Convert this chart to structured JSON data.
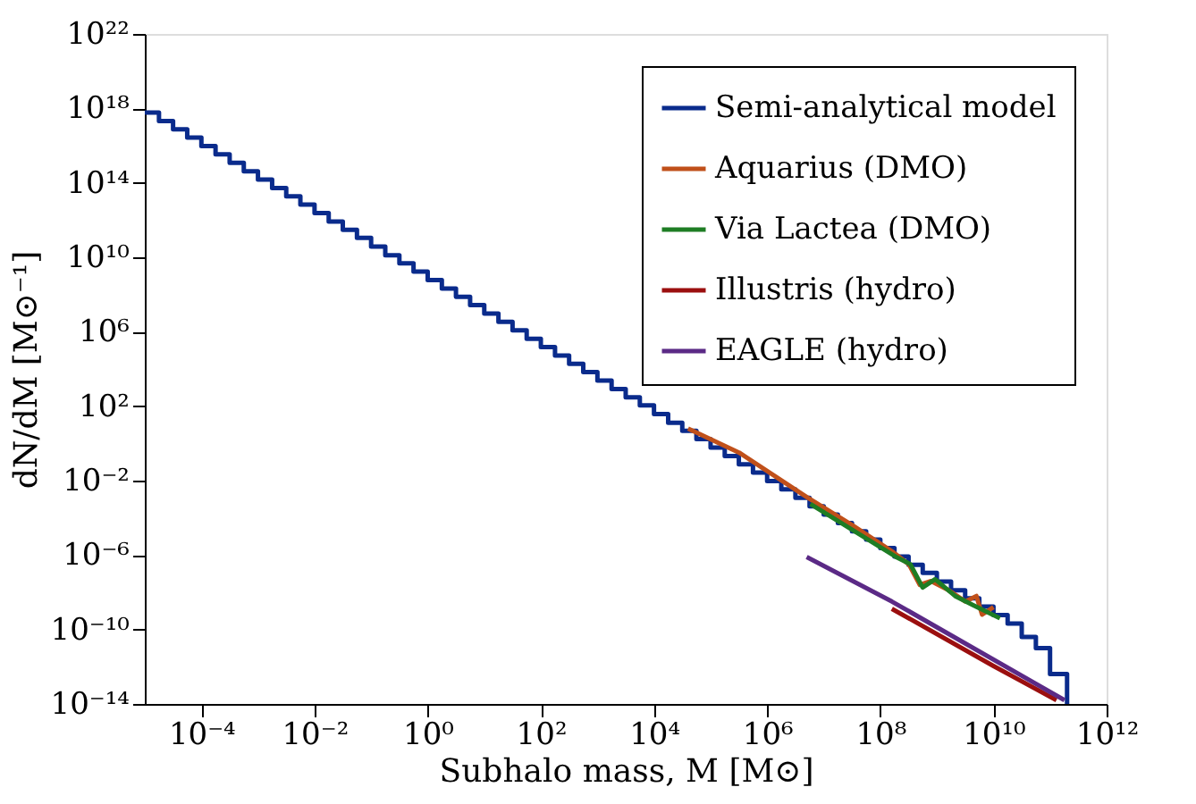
{
  "chart_data": {
    "type": "line",
    "xlabel": "Subhalo mass, M [M⊙]",
    "ylabel": "dN/dM [M⊙⁻¹]",
    "xlim": [
      1e-05,
      1000000000000.0
    ],
    "ylim": [
      1e-14,
      1e+22
    ],
    "log": "xy",
    "grid": false,
    "legend": "top right",
    "line_style": "solid",
    "marker": "none",
    "xticks": [
      {
        "value": 0.0001,
        "label": "10⁻⁴"
      },
      {
        "value": 0.01,
        "label": "10⁻²"
      },
      {
        "value": 1,
        "label": "10⁰"
      },
      {
        "value": 100.0,
        "label": "10²"
      },
      {
        "value": 10000.0,
        "label": "10⁴"
      },
      {
        "value": 1000000.0,
        "label": "10⁶"
      },
      {
        "value": 100000000.0,
        "label": "10⁸"
      },
      {
        "value": 10000000000.0,
        "label": "10¹⁰"
      },
      {
        "value": 1000000000000.0,
        "label": "10¹²"
      }
    ],
    "yticks": [
      {
        "value": 1e-14,
        "label": "10⁻¹⁴"
      },
      {
        "value": 1e-10,
        "label": "10⁻¹⁰"
      },
      {
        "value": 1e-06,
        "label": "10⁻⁶"
      },
      {
        "value": 0.01,
        "label": "10⁻²"
      },
      {
        "value": 100.0,
        "label": "10²"
      },
      {
        "value": 1000000.0,
        "label": "10⁶"
      },
      {
        "value": 10000000000.0,
        "label": "10¹⁰"
      },
      {
        "value": 100000000000000.0,
        "label": "10¹⁴"
      },
      {
        "value": 1e+18,
        "label": "10¹⁸"
      },
      {
        "value": 1e+22,
        "label": "10²²"
      }
    ],
    "series": [
      {
        "name": "Semi-analytical model",
        "type": "step",
        "color": "#0a2b8c",
        "x": [
          1e-05,
          1.78e-05,
          3.16e-05,
          5.62e-05,
          0.0001,
          0.000178,
          0.000316,
          0.000562,
          0.001,
          0.00178,
          0.00316,
          0.00562,
          0.01,
          0.0178,
          0.0316,
          0.0562,
          0.1,
          0.178,
          0.316,
          0.562,
          1,
          1.78,
          3.16,
          5.62,
          10,
          17.8,
          31.6,
          56.2,
          100,
          178,
          316,
          562,
          1000.0,
          1780.0,
          3160.0,
          5620.0,
          10000.0,
          17800.0,
          31600.0,
          56200.0,
          100000.0,
          178000.0,
          316000.0,
          562000.0,
          1000000.0,
          1780000.0,
          3160000.0,
          5620000.0,
          10000000.0,
          17800000.0,
          31600000.0,
          56200000.0,
          100000000.0,
          178000000.0,
          316000000.0,
          562000000.0,
          1000000000.0,
          1780000000.0,
          3160000000.0,
          5620000000.0,
          10000000000.0,
          17800000000.0,
          31600000000.0,
          56200000000.0,
          100000000000.0,
          200000000000.0,
          200000000000.0
        ],
        "values": [
          6e+17,
          2.1e+17,
          7.5e+16,
          2.7e+16,
          9500000000000000.0,
          3400000000000000.0,
          1200000000000000.0,
          420000000000000.0,
          150000000000000.0,
          53000000000000.0,
          19000000000000.0,
          6700000000000.0,
          2400000000000.0,
          840000000000.0,
          300000000000.0,
          110000000000.0,
          38000000000.0,
          13000000000.0,
          4700000000.0,
          1700000000.0,
          600000000.0,
          210000000.0,
          75000000.0,
          27000000.0,
          9500000.0,
          3400000.0,
          1200000.0,
          420000.0,
          150000.0,
          53000.0,
          19000.0,
          6700.0,
          2400.0,
          840,
          300,
          110,
          38,
          13,
          4.7,
          1.7,
          0.6,
          0.21,
          0.075,
          0.027,
          0.0095,
          0.0034,
          0.0012,
          0.00042,
          0.00015,
          5.3e-05,
          1.9e-05,
          6.7e-06,
          2.4e-06,
          8.4e-07,
          3e-07,
          1.1e-07,
          3.8e-08,
          1.3e-08,
          4.7e-09,
          1.7e-09,
          6e-10,
          2.1e-10,
          4e-11,
          1e-11,
          4e-13,
          4e-13,
          1e-14
        ]
      },
      {
        "name": "Aquarius (DMO)",
        "type": "line",
        "color": "#c0501a",
        "x": [
          40000.0,
          320000.0,
          5000000.0,
          32000000.0,
          160000000.0,
          320000000.0,
          500000000.0,
          790000000.0,
          1600000000.0,
          3200000000.0,
          5000000000.0,
          6300000000.0,
          10000000000.0
        ],
        "values": [
          6.3,
          0.32,
          0.0013,
          4e-05,
          1.6e-06,
          3.2e-07,
          2.5e-08,
          4e-08,
          1.3e-08,
          3.2e-09,
          6.3e-09,
          6.3e-10,
          1.6e-09
        ]
      },
      {
        "name": "Via Lactea (DMO)",
        "type": "line",
        "color": "#1e7d24",
        "x": [
          5800000.0,
          190000000.0,
          340000000.0,
          560000000.0,
          930000000.0,
          2100000000.0,
          4400000000.0,
          13000000000.0
        ],
        "values": [
          0.00056,
          7.9e-07,
          3.2e-07,
          1.8e-08,
          5e-08,
          6.3e-09,
          2e-09,
          4e-10
        ]
      },
      {
        "name": "Illustris (hydro)",
        "type": "line",
        "color": "#9b0f0f",
        "x": [
          160000000.0,
          10000000000.0,
          130000000000.0
        ],
        "values": [
          1.3e-09,
          1.1e-12,
          1.6e-14
        ]
      },
      {
        "name": "EAGLE (hydro)",
        "type": "line",
        "color": "#5b2a86",
        "x": [
          5000000.0,
          160000000.0,
          180000000000.0
        ],
        "values": [
          7.9e-07,
          3.2e-09,
          1.6e-14
        ]
      }
    ]
  }
}
